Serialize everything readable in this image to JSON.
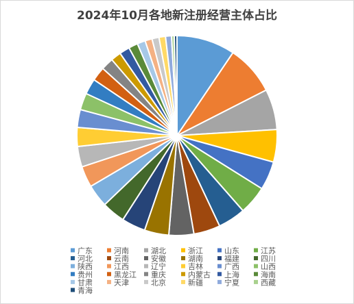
{
  "chart_data": {
    "type": "pie",
    "title": "2024年10月各地新注册经营主体占比",
    "categories": [
      "广东",
      "河南",
      "湖北",
      "浙江",
      "山东",
      "江苏",
      "河北",
      "云南",
      "安徽",
      "湖南",
      "福建",
      "四川",
      "陕西",
      "江西",
      "辽宁",
      "吉林",
      "广西",
      "山西",
      "贵州",
      "黑龙江",
      "重庆",
      "内蒙古",
      "上海",
      "海南",
      "甘肃",
      "天津",
      "北京",
      "新疆",
      "宁夏",
      "西藏",
      "青海"
    ],
    "values": [
      10.8,
      9.2,
      7.5,
      6.0,
      5.3,
      5.3,
      5.1,
      4.9,
      4.6,
      4.5,
      4.4,
      4.3,
      4.2,
      3.9,
      3.8,
      3.5,
      3.3,
      3.1,
      2.9,
      2.6,
      2.3,
      1.9,
      1.9,
      1.7,
      1.5,
      1.3,
      1.3,
      1.2,
      1.1,
      0.5,
      0.5
    ],
    "colors": [
      "#5B9BD5",
      "#ED7D31",
      "#A5A5A5",
      "#FFC000",
      "#4472C4",
      "#70AD47",
      "#255E91",
      "#9E480E",
      "#636363",
      "#997300",
      "#264478",
      "#43682B",
      "#7CAFDD",
      "#F1975A",
      "#B7B7B7",
      "#FFCD33",
      "#698ED0",
      "#8CC168",
      "#327DC2",
      "#D26012",
      "#848484",
      "#CC9A00",
      "#335AA1",
      "#5A8A39",
      "#A6C8E7",
      "#F4B183",
      "#C9C9C9",
      "#FFD966",
      "#8FAADC",
      "#A9D18E",
      "#1F4E79"
    ],
    "legend": "bottom"
  }
}
